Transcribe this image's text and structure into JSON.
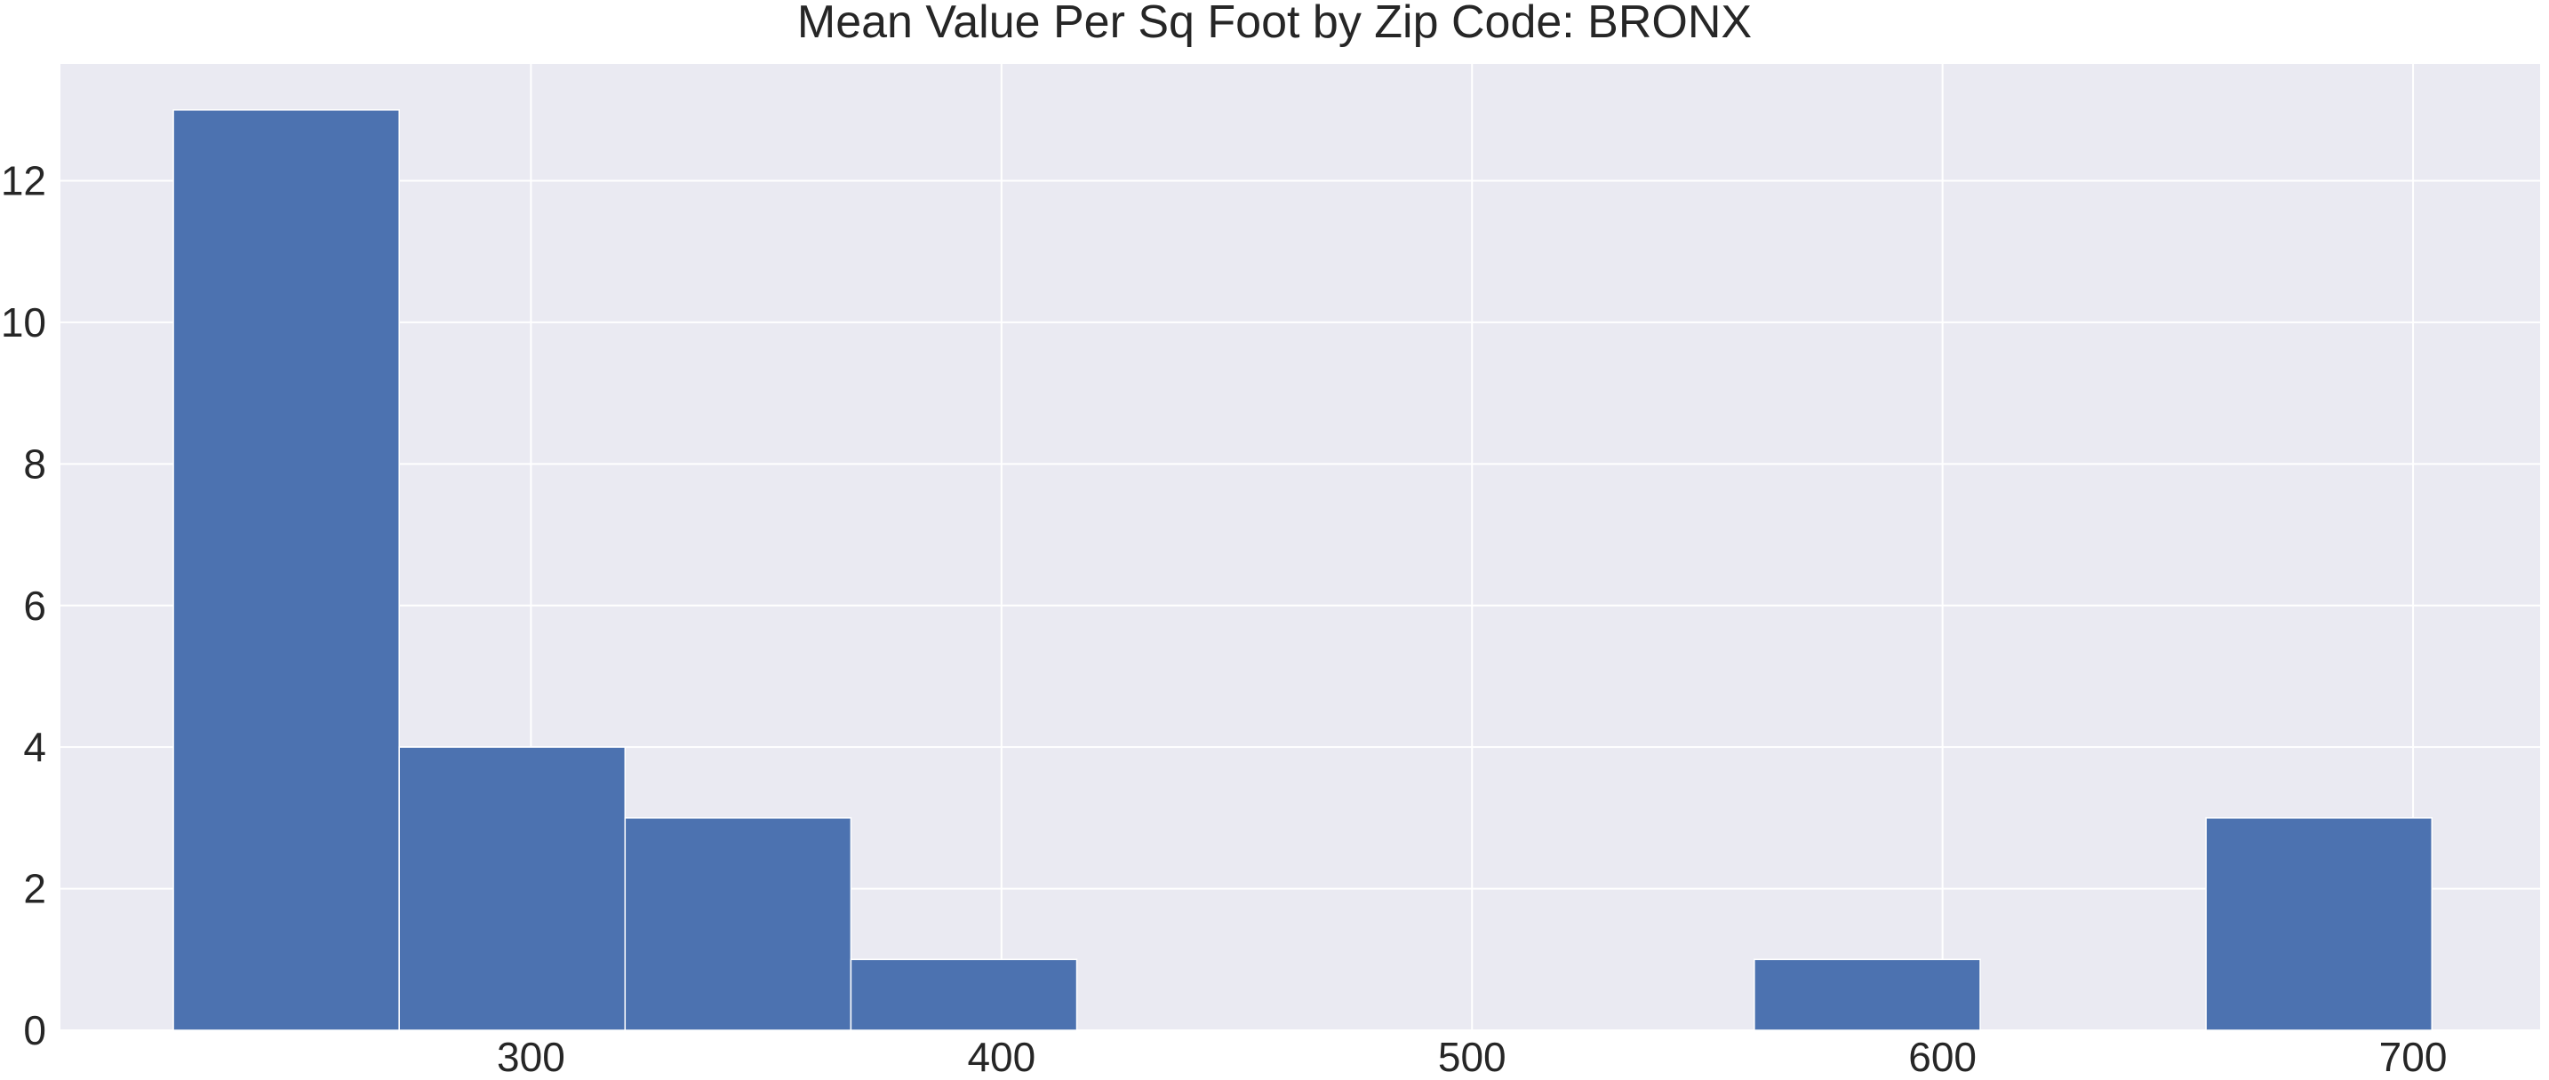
{
  "chart_data": {
    "type": "bar",
    "title": "Mean Value Per Sq Foot by Zip Code: BRONX",
    "xlabel": "",
    "ylabel": "",
    "bins": [
      {
        "start": 224,
        "end": 272,
        "count": 13
      },
      {
        "start": 272,
        "end": 320,
        "count": 4
      },
      {
        "start": 320,
        "end": 368,
        "count": 3
      },
      {
        "start": 368,
        "end": 416,
        "count": 1
      },
      {
        "start": 416,
        "end": 464,
        "count": 0
      },
      {
        "start": 464,
        "end": 512,
        "count": 0
      },
      {
        "start": 512,
        "end": 560,
        "count": 0
      },
      {
        "start": 560,
        "end": 608,
        "count": 1
      },
      {
        "start": 608,
        "end": 656,
        "count": 0
      },
      {
        "start": 656,
        "end": 704,
        "count": 3
      }
    ],
    "xlim": [
      200,
      727
    ],
    "ylim": [
      0,
      13.65
    ],
    "x_ticks": [
      300,
      400,
      500,
      600,
      700
    ],
    "y_ticks": [
      0,
      2,
      4,
      6,
      8,
      10,
      12
    ],
    "grid": true,
    "colors": {
      "bar": "#4c72b0",
      "plot_background": "#eaeaf2",
      "grid": "#ffffff"
    }
  }
}
